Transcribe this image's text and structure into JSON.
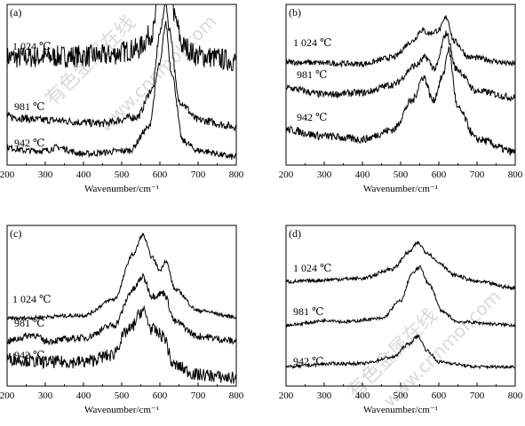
{
  "chart_data": [
    {
      "type": "line",
      "panel_label": "(a)",
      "xlabel": "Wavenumber/cm⁻¹",
      "xlim": [
        200,
        800
      ],
      "xticks": [
        200,
        300,
        400,
        500,
        600,
        700,
        800
      ],
      "series": [
        {
          "name": "1 024 ℃",
          "offset": 0.62,
          "noise": 0.07,
          "points": [
            [
              200,
              0.05
            ],
            [
              450,
              0.06
            ],
            [
              540,
              0.1
            ],
            [
              580,
              0.2
            ],
            [
              600,
              0.45
            ],
            [
              610,
              0.75
            ],
            [
              615,
              0.85
            ],
            [
              625,
              0.65
            ],
            [
              640,
              0.28
            ],
            [
              660,
              0.12
            ],
            [
              700,
              0.06
            ],
            [
              800,
              0.03
            ]
          ]
        },
        {
          "name": "981 ℃",
          "offset": 0.22,
          "noise": 0.025,
          "points": [
            [
              200,
              0.08
            ],
            [
              300,
              0.06
            ],
            [
              450,
              0.04
            ],
            [
              540,
              0.08
            ],
            [
              580,
              0.25
            ],
            [
              600,
              0.6
            ],
            [
              615,
              0.8
            ],
            [
              625,
              0.62
            ],
            [
              650,
              0.18
            ],
            [
              700,
              0.06
            ],
            [
              800,
              0.02
            ]
          ]
        },
        {
          "name": "942 ℃",
          "offset": 0.03,
          "noise": 0.02,
          "points": [
            [
              200,
              0.08
            ],
            [
              250,
              0.06
            ],
            [
              300,
              0.06
            ],
            [
              330,
              0.08
            ],
            [
              400,
              0.04
            ],
            [
              520,
              0.06
            ],
            [
              570,
              0.2
            ],
            [
              600,
              0.6
            ],
            [
              615,
              0.85
            ],
            [
              630,
              0.55
            ],
            [
              660,
              0.12
            ],
            [
              700,
              0.06
            ],
            [
              800,
              0.02
            ]
          ]
        }
      ]
    },
    {
      "type": "line",
      "panel_label": "(b)",
      "xlabel": "Wavenumber/cm⁻¹",
      "xlim": [
        200,
        800
      ],
      "xticks": [
        200,
        300,
        400,
        500,
        600,
        700,
        800
      ],
      "series": [
        {
          "name": "1 024 ℃",
          "offset": 0.62,
          "noise": 0.018,
          "points": [
            [
              200,
              0.02
            ],
            [
              400,
              0.01
            ],
            [
              480,
              0.05
            ],
            [
              530,
              0.15
            ],
            [
              555,
              0.22
            ],
            [
              575,
              0.2
            ],
            [
              600,
              0.22
            ],
            [
              620,
              0.3
            ],
            [
              640,
              0.15
            ],
            [
              680,
              0.05
            ],
            [
              800,
              0.01
            ]
          ]
        },
        {
          "name": "981 ℃",
          "offset": 0.42,
          "noise": 0.022,
          "points": [
            [
              200,
              0.06
            ],
            [
              300,
              0.02
            ],
            [
              400,
              0.03
            ],
            [
              480,
              0.08
            ],
            [
              540,
              0.2
            ],
            [
              565,
              0.25
            ],
            [
              590,
              0.18
            ],
            [
              620,
              0.4
            ],
            [
              645,
              0.18
            ],
            [
              700,
              0.04
            ],
            [
              800,
              0.0
            ]
          ]
        },
        {
          "name": "942 ℃",
          "offset": 0.1,
          "noise": 0.025,
          "points": [
            [
              200,
              0.12
            ],
            [
              300,
              0.08
            ],
            [
              400,
              0.06
            ],
            [
              480,
              0.12
            ],
            [
              530,
              0.3
            ],
            [
              560,
              0.45
            ],
            [
              585,
              0.3
            ],
            [
              610,
              0.45
            ],
            [
              625,
              0.62
            ],
            [
              650,
              0.25
            ],
            [
              700,
              0.06
            ],
            [
              800,
              -0.02
            ]
          ]
        }
      ]
    },
    {
      "type": "line",
      "panel_label": "(c)",
      "xlabel": "Wavenumber/cm⁻¹",
      "xlim": [
        200,
        800
      ],
      "xticks": [
        200,
        300,
        400,
        500,
        600,
        700,
        800
      ],
      "series": [
        {
          "name": "1 024 ℃",
          "offset": 0.42,
          "noise": 0.012,
          "points": [
            [
              200,
              0.0
            ],
            [
              400,
              0.02
            ],
            [
              480,
              0.12
            ],
            [
              530,
              0.4
            ],
            [
              555,
              0.52
            ],
            [
              580,
              0.38
            ],
            [
              600,
              0.3
            ],
            [
              615,
              0.36
            ],
            [
              640,
              0.18
            ],
            [
              700,
              0.05
            ],
            [
              800,
              0.01
            ]
          ]
        },
        {
          "name": "981 ℃",
          "offset": 0.28,
          "noise": 0.022,
          "points": [
            [
              200,
              0.0
            ],
            [
              270,
              0.04
            ],
            [
              300,
              0.0
            ],
            [
              400,
              0.02
            ],
            [
              480,
              0.1
            ],
            [
              530,
              0.32
            ],
            [
              555,
              0.4
            ],
            [
              580,
              0.28
            ],
            [
              610,
              0.3
            ],
            [
              640,
              0.12
            ],
            [
              700,
              0.03
            ],
            [
              800,
              0.0
            ]
          ]
        },
        {
          "name": "942 ℃",
          "offset": 0.05,
          "noise": 0.04,
          "points": [
            [
              200,
              0.12
            ],
            [
              300,
              0.1
            ],
            [
              400,
              0.1
            ],
            [
              470,
              0.14
            ],
            [
              520,
              0.3
            ],
            [
              555,
              0.42
            ],
            [
              580,
              0.3
            ],
            [
              610,
              0.26
            ],
            [
              635,
              0.08
            ],
            [
              700,
              0.02
            ],
            [
              800,
              0.0
            ]
          ]
        }
      ]
    },
    {
      "type": "line",
      "panel_label": "(d)",
      "xlabel": "Wavenumber/cm⁻¹",
      "xlim": [
        200,
        800
      ],
      "xticks": [
        200,
        300,
        400,
        500,
        600,
        700,
        800
      ],
      "series": [
        {
          "name": "1 024 ℃",
          "offset": 0.63,
          "noise": 0.012,
          "points": [
            [
              200,
              0.02
            ],
            [
              400,
              0.04
            ],
            [
              480,
              0.1
            ],
            [
              520,
              0.2
            ],
            [
              545,
              0.26
            ],
            [
              570,
              0.2
            ],
            [
              600,
              0.14
            ],
            [
              640,
              0.06
            ],
            [
              700,
              0.02
            ],
            [
              800,
              -0.02
            ]
          ]
        },
        {
          "name": "981 ℃",
          "offset": 0.38,
          "noise": 0.01,
          "points": [
            [
              200,
              0.0
            ],
            [
              320,
              0.03
            ],
            [
              350,
              0.02
            ],
            [
              450,
              0.04
            ],
            [
              500,
              0.15
            ],
            [
              530,
              0.32
            ],
            [
              550,
              0.36
            ],
            [
              575,
              0.25
            ],
            [
              610,
              0.08
            ],
            [
              650,
              0.02
            ],
            [
              800,
              0.0
            ]
          ]
        },
        {
          "name": "942 ℃",
          "offset": 0.12,
          "noise": 0.01,
          "points": [
            [
              200,
              0.0
            ],
            [
              330,
              0.02
            ],
            [
              400,
              0.02
            ],
            [
              480,
              0.06
            ],
            [
              520,
              0.14
            ],
            [
              545,
              0.19
            ],
            [
              570,
              0.1
            ],
            [
              600,
              0.03
            ],
            [
              700,
              0.0
            ],
            [
              800,
              0.0
            ]
          ]
        }
      ]
    }
  ],
  "watermark": {
    "text_cn": "有色金属在线",
    "text_url": "www.cnnmol.com"
  }
}
